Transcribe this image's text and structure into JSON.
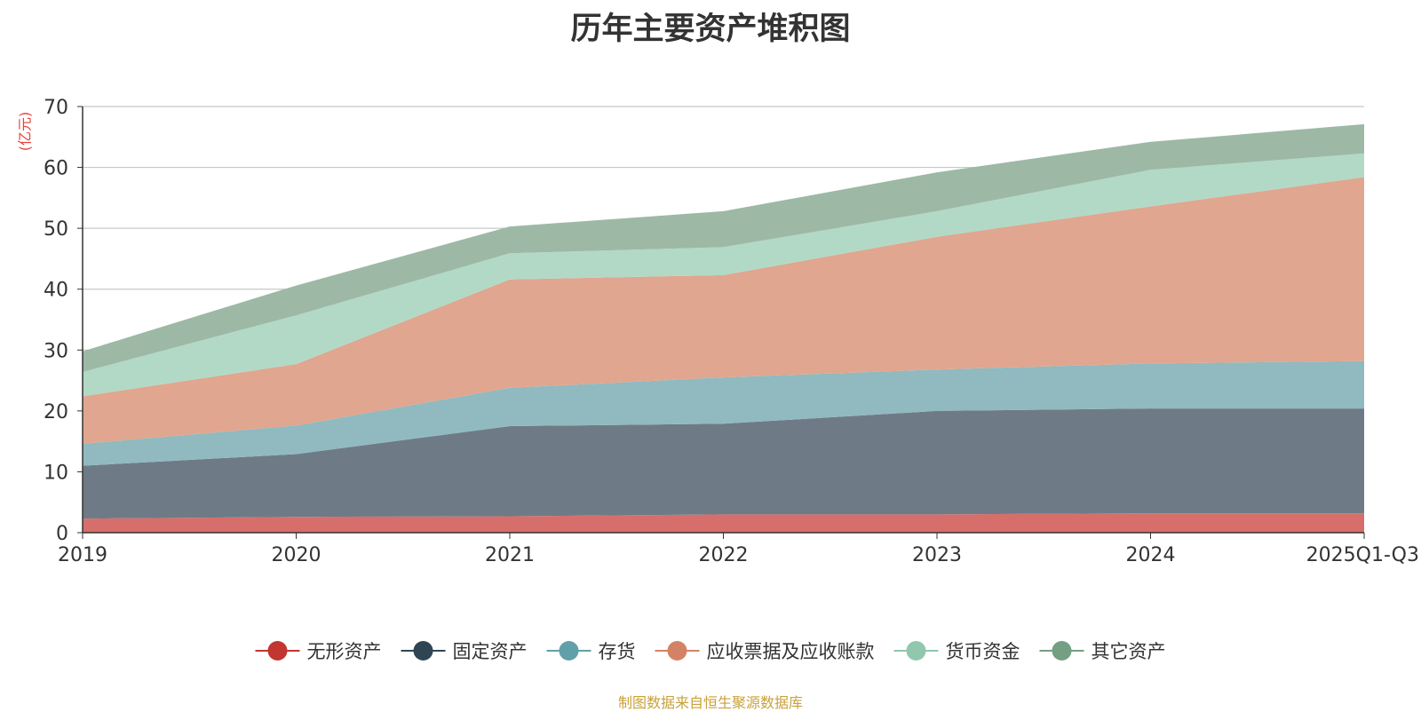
{
  "chart_data": {
    "type": "area",
    "stacked": true,
    "title": "历年主要资产堆积图",
    "ylabel": "(亿元)",
    "xlabel": "",
    "ylim": [
      0,
      70
    ],
    "yticks": [
      0,
      10,
      20,
      30,
      40,
      50,
      60,
      70
    ],
    "categories": [
      "2019",
      "2020",
      "2021",
      "2022",
      "2023",
      "2024",
      "2025Q1-Q3"
    ],
    "series": [
      {
        "name": "无形资产",
        "color": "#c23531",
        "fill": "#d66f6b",
        "values": [
          2.3,
          2.6,
          2.7,
          3.0,
          3.0,
          3.2,
          3.2
        ]
      },
      {
        "name": "固定资产",
        "color": "#2f4554",
        "fill": "#6e7b86",
        "values": [
          8.7,
          10.3,
          14.8,
          14.9,
          17.0,
          17.2,
          17.2
        ]
      },
      {
        "name": "存货",
        "color": "#61a0a8",
        "fill": "#90babf",
        "values": [
          3.6,
          4.7,
          6.3,
          7.6,
          6.8,
          7.4,
          7.8
        ]
      },
      {
        "name": "应收票据及应收账款",
        "color": "#d48265",
        "fill": "#e0a68f",
        "values": [
          7.8,
          10.1,
          17.8,
          16.8,
          21.8,
          25.8,
          30.2
        ]
      },
      {
        "name": "货币资金",
        "color": "#91c7ae",
        "fill": "#b2d9c6",
        "values": [
          4.0,
          8.0,
          4.3,
          4.6,
          4.2,
          6.0,
          3.9
        ]
      },
      {
        "name": "其它资产",
        "color": "#749f83",
        "fill": "#9db9a6",
        "values": [
          3.4,
          4.9,
          4.4,
          5.9,
          6.4,
          4.6,
          4.8
        ]
      }
    ],
    "grid": true,
    "legend_position": "bottom"
  },
  "source_text": "制图数据来自恒生聚源数据库"
}
